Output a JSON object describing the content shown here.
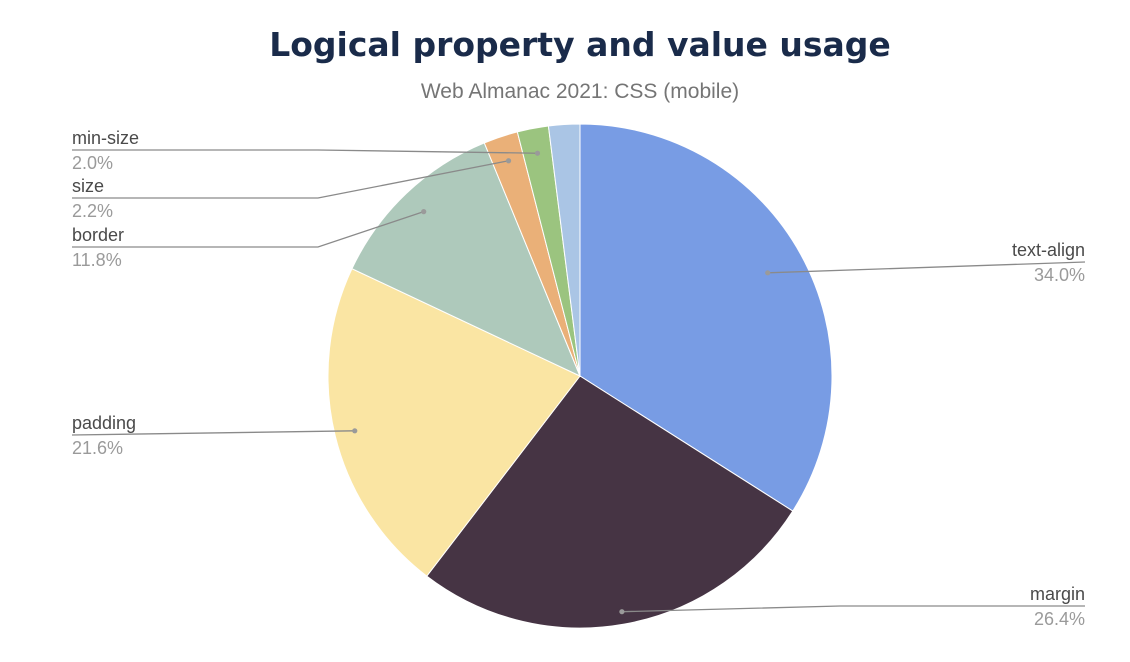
{
  "chart_data": {
    "type": "pie",
    "title": "Logical property and value usage",
    "subtitle": "Web Almanac 2021: CSS (mobile)",
    "slices": [
      {
        "label": "text-align",
        "value": 34.0,
        "display": "34.0%",
        "color": "#789ce4"
      },
      {
        "label": "margin",
        "value": 26.4,
        "display": "26.4%",
        "color": "#463444"
      },
      {
        "label": "padding",
        "value": 21.6,
        "display": "21.6%",
        "color": "#fae5a3"
      },
      {
        "label": "border",
        "value": 11.8,
        "display": "11.8%",
        "color": "#aec9bb"
      },
      {
        "label": "size",
        "value": 2.2,
        "display": "2.2%",
        "color": "#eab078"
      },
      {
        "label": "min-size",
        "value": 2.0,
        "display": "2.0%",
        "color": "#9bc47f"
      },
      {
        "label": "",
        "value": 2.0,
        "display": "",
        "color": "#aac5e5"
      }
    ],
    "start_angle": "12 o'clock",
    "direction": "clockwise",
    "legend": "none (outside labels)"
  }
}
